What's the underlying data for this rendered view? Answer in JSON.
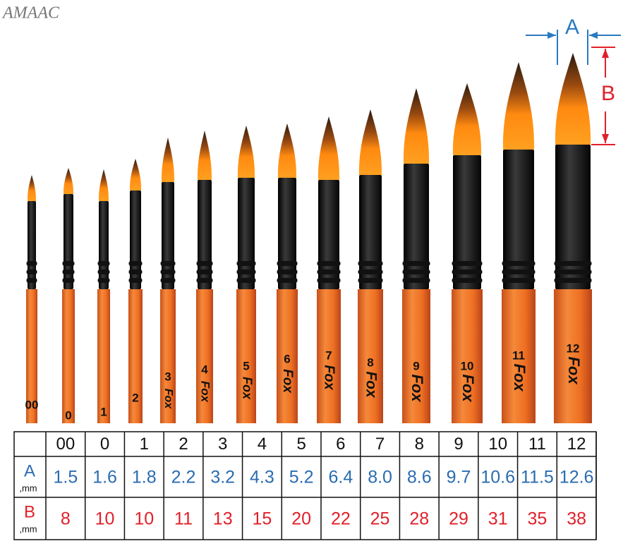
{
  "logo": "AMAAC",
  "dimension_labels": {
    "a": "A",
    "b": "B"
  },
  "brush_brand": "Fox",
  "table": {
    "sizes": [
      "00",
      "0",
      "1",
      "2",
      "3",
      "4",
      "5",
      "6",
      "7",
      "8",
      "9",
      "10",
      "11",
      "12"
    ],
    "row_a": {
      "label": "A",
      "unit": ",mm",
      "values": [
        "1.5",
        "1.6",
        "1.8",
        "2.2",
        "3.2",
        "4.3",
        "5.2",
        "6.4",
        "8.0",
        "8.6",
        "9.7",
        "10.6",
        "11.5",
        "12.6"
      ]
    },
    "row_b": {
      "label": "B",
      "unit": ",mm",
      "values": [
        "8",
        "10",
        "10",
        "11",
        "13",
        "15",
        "20",
        "22",
        "25",
        "28",
        "29",
        "31",
        "35",
        "38"
      ]
    }
  }
}
